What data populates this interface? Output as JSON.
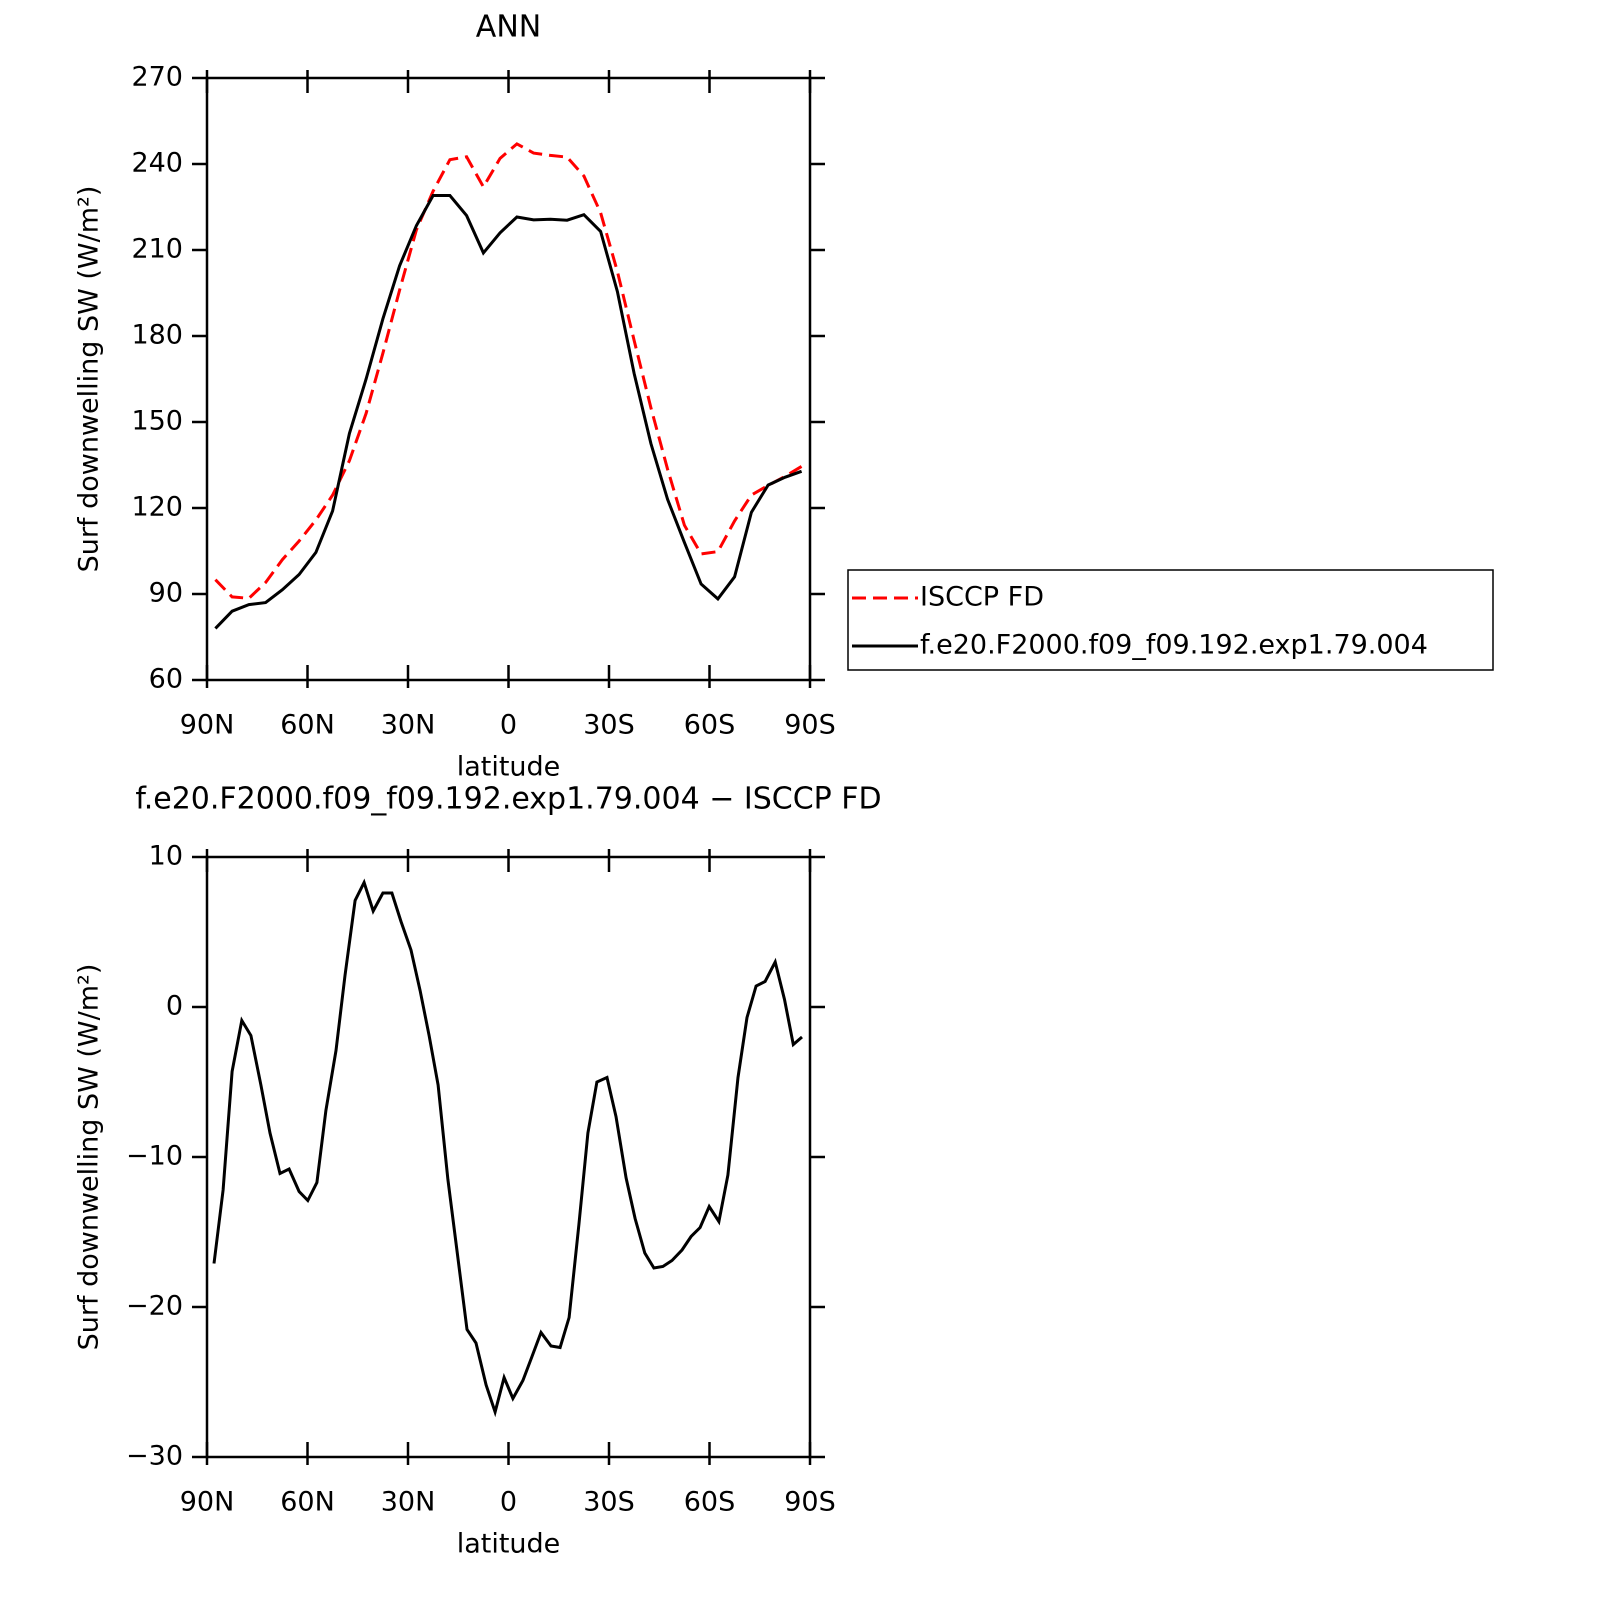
{
  "chart_data": [
    {
      "type": "line",
      "title": "ANN",
      "xlabel": "latitude",
      "ylabel": "Surf downwelling SW (W/m²)",
      "x": [
        87.5,
        82.5,
        77.5,
        72.5,
        67.5,
        62.5,
        57.5,
        52.5,
        47.5,
        42.5,
        37.5,
        32.5,
        27.5,
        22.5,
        17.5,
        12.5,
        7.5,
        2.5,
        -2.5,
        -7.5,
        -12.5,
        -17.5,
        -22.5,
        -27.5,
        -32.5,
        -37.5,
        -42.5,
        -47.5,
        -52.5,
        -57.5,
        -62.5,
        -67.5,
        -72.5,
        -77.5,
        -82.5,
        -87.5
      ],
      "xlim": [
        90,
        -90
      ],
      "xticks": [
        {
          "value": 90,
          "label": "90N"
        },
        {
          "value": 60,
          "label": "60N"
        },
        {
          "value": 30,
          "label": "30N"
        },
        0,
        {
          "value": -30,
          "label": "30S"
        },
        {
          "value": -60,
          "label": "60S"
        },
        {
          "value": -90,
          "label": "90S"
        }
      ],
      "ylim": [
        60,
        270
      ],
      "yticks": [
        60,
        90,
        120,
        150,
        180,
        210,
        240,
        270
      ],
      "legend": "right",
      "series": [
        {
          "name": "ISCCP FD",
          "color": "#ff0000",
          "line_style": "dashed",
          "values": [
            95,
            89,
            88.5,
            94,
            102,
            108.5,
            115.8,
            124.5,
            136.5,
            153,
            174,
            196,
            217,
            230.5,
            241.5,
            242.5,
            232,
            242,
            247,
            243.8,
            243,
            242.4,
            235.8,
            223,
            202.5,
            178.5,
            155,
            133.5,
            114,
            104,
            104.8,
            115.5,
            124.5,
            127.9,
            131,
            134.5
          ]
        },
        {
          "name": "f.e20.F2000.f09_f09.192.exp1.79.004",
          "color": "#000000",
          "line_style": "solid",
          "values": [
            78,
            84,
            86.3,
            87,
            91.5,
            96.8,
            104.5,
            119,
            146,
            165,
            186,
            204.5,
            218.5,
            229,
            229,
            222,
            209,
            216,
            221.5,
            220.5,
            220.7,
            220.4,
            222.3,
            216.5,
            195.5,
            167,
            142.5,
            123,
            108,
            93.5,
            88.3,
            96,
            118.5,
            128,
            130.7,
            132.8
          ]
        }
      ]
    },
    {
      "type": "line",
      "title": "f.e20.F2000.f09_f09.192.exp1.79.004 − ISCCP FD",
      "xlabel": "latitude",
      "ylabel": "Surf downwelling SW (W/m²)",
      "x": [
        87.9,
        85.2,
        82.5,
        79.6,
        76.9,
        73.9,
        71.2,
        68.2,
        65.5,
        62.5,
        59.9,
        57.2,
        54.5,
        51.5,
        48.8,
        45.8,
        43.1,
        40.4,
        37.5,
        34.8,
        32.1,
        29.1,
        26.4,
        23.7,
        21,
        18.1,
        15.4,
        12.4,
        9.7,
        6.7,
        4,
        1.3,
        -1.3,
        -4.3,
        -7,
        -9.7,
        -12.7,
        -15.4,
        -18.1,
        -21,
        -23.7,
        -26.4,
        -29.4,
        -32.1,
        -35.1,
        -37.8,
        -40.7,
        -43.4,
        -46.1,
        -48.8,
        -51.8,
        -54.5,
        -57.2,
        -59.9,
        -62.8,
        -65.5,
        -68.5,
        -71.2,
        -73.9,
        -76.6,
        -79.6,
        -82.4,
        -85,
        -87.6
      ],
      "xlim": [
        90,
        -90
      ],
      "xticks": [
        {
          "value": 90,
          "label": "90N"
        },
        {
          "value": 60,
          "label": "60N"
        },
        {
          "value": 30,
          "label": "30N"
        },
        0,
        {
          "value": -30,
          "label": "30S"
        },
        {
          "value": -60,
          "label": "60S"
        },
        {
          "value": -90,
          "label": "90S"
        }
      ],
      "ylim": [
        -30,
        10
      ],
      "yticks": [
        {
          "value": -30,
          "label": "−30"
        },
        {
          "value": -20,
          "label": "−20"
        },
        {
          "value": -10,
          "label": "−10"
        },
        0,
        10
      ],
      "color": "#000000",
      "values": [
        -17.1,
        -12.2,
        -4.3,
        -0.9,
        -1.9,
        -5.2,
        -8.4,
        -11.1,
        -10.8,
        -12.3,
        -12.9,
        -11.7,
        -6.9,
        -2.9,
        2.1,
        7.1,
        8.3,
        6.4,
        7.6,
        7.6,
        5.7,
        3.8,
        1.1,
        -1.9,
        -5.2,
        -11.5,
        -16.2,
        -21.5,
        -22.4,
        -25.2,
        -27,
        -24.7,
        -26.1,
        -24.9,
        -23.3,
        -21.7,
        -22.6,
        -22.7,
        -20.7,
        -14.5,
        -8.4,
        -5,
        -4.7,
        -7.3,
        -11.4,
        -14.1,
        -16.4,
        -17.4,
        -17.3,
        -16.9,
        -16.2,
        -15.3,
        -14.7,
        -13.3,
        -14.3,
        -11.2,
        -4.7,
        -0.7,
        1.4,
        1.7,
        3,
        0.5,
        -2.5,
        -2
      ]
    }
  ]
}
